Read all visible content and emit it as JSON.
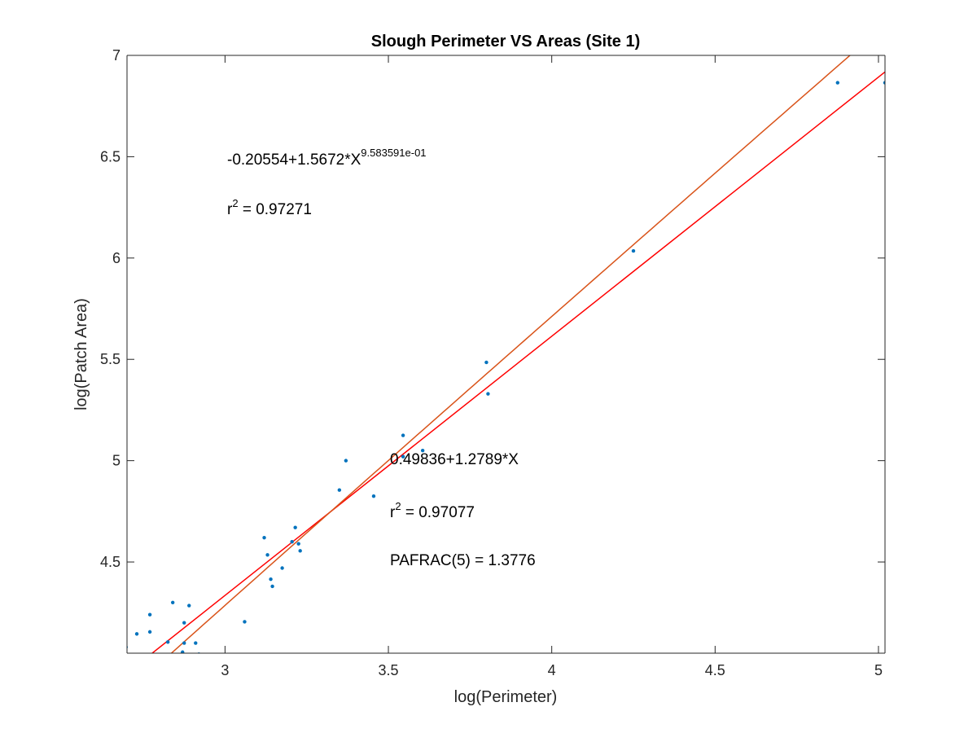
{
  "chart_data": {
    "type": "scatter",
    "title": "Slough Perimeter VS Areas (Site 1)",
    "xlabel": "log(Perimeter)",
    "ylabel": "log(Patch Area)",
    "xlim": [
      2.7,
      5.02
    ],
    "ylim": [
      4.05,
      7.0
    ],
    "x_ticks": [
      3,
      3.5,
      4,
      4.5,
      5
    ],
    "x_tick_labels": [
      "3",
      "3.5",
      "4",
      "4.5",
      "5"
    ],
    "y_ticks": [
      4.5,
      5,
      5.5,
      6,
      6.5,
      7
    ],
    "y_tick_labels": [
      "4.5",
      "5",
      "5.5",
      "6",
      "6.5",
      "7"
    ],
    "grid": false,
    "colors": {
      "points": "#0072BD",
      "linear_fit": "#FF0000",
      "power_fit": "#D95319",
      "axes": "#262626"
    },
    "points": [
      {
        "x": 2.697,
        "y": 4.08
      },
      {
        "x": 2.73,
        "y": 4.145
      },
      {
        "x": 2.77,
        "y": 4.155
      },
      {
        "x": 2.77,
        "y": 4.24
      },
      {
        "x": 2.825,
        "y": 4.105
      },
      {
        "x": 2.84,
        "y": 4.3
      },
      {
        "x": 2.87,
        "y": 4.055
      },
      {
        "x": 2.875,
        "y": 4.1
      },
      {
        "x": 2.875,
        "y": 4.2
      },
      {
        "x": 2.89,
        "y": 4.285
      },
      {
        "x": 2.91,
        "y": 4.1
      },
      {
        "x": 2.92,
        "y": 4.045
      },
      {
        "x": 3.06,
        "y": 4.205
      },
      {
        "x": 3.12,
        "y": 4.62
      },
      {
        "x": 3.13,
        "y": 4.535
      },
      {
        "x": 3.14,
        "y": 4.415
      },
      {
        "x": 3.145,
        "y": 4.38
      },
      {
        "x": 3.175,
        "y": 4.47
      },
      {
        "x": 3.205,
        "y": 4.6
      },
      {
        "x": 3.215,
        "y": 4.67
      },
      {
        "x": 3.225,
        "y": 4.59
      },
      {
        "x": 3.23,
        "y": 4.555
      },
      {
        "x": 3.35,
        "y": 4.855
      },
      {
        "x": 3.37,
        "y": 5.0
      },
      {
        "x": 3.455,
        "y": 4.825
      },
      {
        "x": 3.545,
        "y": 5.125
      },
      {
        "x": 3.545,
        "y": 5.02
      },
      {
        "x": 3.605,
        "y": 5.05
      },
      {
        "x": 3.8,
        "y": 5.485
      },
      {
        "x": 3.805,
        "y": 5.33
      },
      {
        "x": 4.25,
        "y": 6.035
      },
      {
        "x": 4.875,
        "y": 6.865
      },
      {
        "x": 5.02,
        "y": 6.865
      }
    ],
    "linear_fit": {
      "intercept": 0.49836,
      "slope": 1.2789
    },
    "power_fit": {
      "a": -0.20554,
      "b": 1.5672,
      "c": 0.9583591
    },
    "annotations": {
      "power_equation": "-0.20554+1.5672*X",
      "power_exponent": "9.583591e-01",
      "power_r2_prefix": "r",
      "power_r2_sup": "2",
      "power_r2_value": " = 0.97271",
      "linear_equation": "0.49836+1.2789*X",
      "linear_r2_prefix": "r",
      "linear_r2_sup": "2",
      "linear_r2_value": " = 0.97077",
      "pafrac": "PAFRAC(5) = 1.3776"
    }
  }
}
